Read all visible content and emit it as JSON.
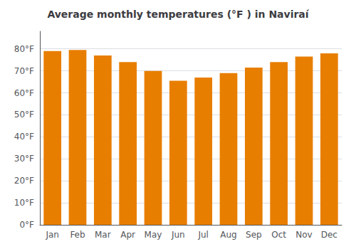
{
  "chart_data": {
    "type": "bar",
    "title": "Average monthly temperatures (°F ) in Naviraí",
    "categories": [
      "Jan",
      "Feb",
      "Mar",
      "Apr",
      "May",
      "Jun",
      "Jul",
      "Aug",
      "Sep",
      "Oct",
      "Nov",
      "Dec"
    ],
    "values": [
      79,
      79.5,
      77,
      74,
      70,
      65.5,
      67,
      69,
      71.5,
      74,
      76.5,
      78
    ],
    "color": "#E87E00",
    "ylim": [
      0,
      88
    ],
    "yticks": [
      {
        "value": 0,
        "label": "0°F"
      },
      {
        "value": 10,
        "label": "10°F"
      },
      {
        "value": 20,
        "label": "20°F"
      },
      {
        "value": 30,
        "label": "30°F"
      },
      {
        "value": 40,
        "label": "40°F"
      },
      {
        "value": 50,
        "label": "50°F"
      },
      {
        "value": 60,
        "label": "60°F"
      },
      {
        "value": 70,
        "label": "70°F"
      },
      {
        "value": 80,
        "label": "80°F"
      }
    ],
    "grid": true
  }
}
